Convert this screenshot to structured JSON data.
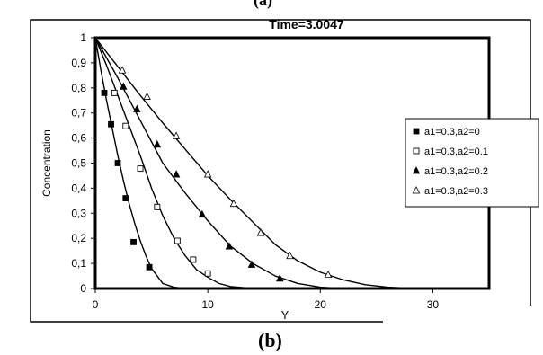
{
  "panel_label_top": "(a)",
  "panel_label": "(b)",
  "chart_data": {
    "type": "line",
    "title": "Time=3.0047",
    "xlabel": "Y",
    "ylabel": "Concentration",
    "xlim": [
      0,
      35
    ],
    "ylim": [
      0,
      1
    ],
    "xticks": [
      "0",
      "10",
      "20",
      "30"
    ],
    "xtick_values": [
      0,
      10,
      20,
      30
    ],
    "yticks": [
      "0",
      "0,1",
      "0,2",
      "0,3",
      "0,4",
      "0,5",
      "0,6",
      "0,7",
      "0,8",
      "0,9",
      "1"
    ],
    "ytick_values": [
      0,
      0.1,
      0.2,
      0.3,
      0.4,
      0.5,
      0.6,
      0.7,
      0.8,
      0.9,
      1
    ],
    "grid": false,
    "legend_position": "right",
    "series": [
      {
        "name": "a1=0.3,a2=0",
        "marker": "filled-square",
        "curve": [
          [
            0,
            1
          ],
          [
            0.5,
            0.87
          ],
          [
            1,
            0.75
          ],
          [
            1.5,
            0.64
          ],
          [
            2,
            0.53
          ],
          [
            2.5,
            0.43
          ],
          [
            3,
            0.34
          ],
          [
            3.5,
            0.26
          ],
          [
            4,
            0.19
          ],
          [
            4.5,
            0.13
          ],
          [
            5,
            0.08
          ],
          [
            5.5,
            0.05
          ],
          [
            6,
            0.02
          ],
          [
            7,
            0.005
          ],
          [
            8,
            0
          ]
        ],
        "points": [
          [
            0.8,
            0.78
          ],
          [
            1.4,
            0.655
          ],
          [
            2.0,
            0.5
          ],
          [
            2.7,
            0.36
          ],
          [
            3.4,
            0.185
          ],
          [
            4.8,
            0.085
          ]
        ]
      },
      {
        "name": "a1=0.3,a2=0.1",
        "marker": "open-square",
        "curve": [
          [
            0,
            1
          ],
          [
            1,
            0.89
          ],
          [
            2,
            0.77
          ],
          [
            3,
            0.65
          ],
          [
            4,
            0.53
          ],
          [
            5,
            0.4
          ],
          [
            6,
            0.29
          ],
          [
            7,
            0.2
          ],
          [
            8,
            0.13
          ],
          [
            9,
            0.075
          ],
          [
            10,
            0.045
          ],
          [
            11,
            0.02
          ],
          [
            12,
            0.008
          ],
          [
            14,
            0
          ]
        ],
        "points": [
          [
            1.7,
            0.78
          ],
          [
            2.7,
            0.648
          ],
          [
            4.0,
            0.478
          ],
          [
            5.5,
            0.325
          ],
          [
            7.3,
            0.19
          ],
          [
            8.7,
            0.115
          ],
          [
            10.0,
            0.06
          ]
        ]
      },
      {
        "name": "a1=0.3,a2=0.2",
        "marker": "filled-triangle",
        "curve": [
          [
            0,
            1
          ],
          [
            2,
            0.84
          ],
          [
            4,
            0.67
          ],
          [
            6,
            0.5
          ],
          [
            8,
            0.38
          ],
          [
            10,
            0.27
          ],
          [
            12,
            0.17
          ],
          [
            14,
            0.1
          ],
          [
            16,
            0.05
          ],
          [
            18,
            0.02
          ],
          [
            20,
            0.005
          ],
          [
            22,
            0
          ]
        ],
        "points": [
          [
            2.5,
            0.805
          ],
          [
            3.7,
            0.715
          ],
          [
            5.5,
            0.574
          ],
          [
            7.2,
            0.455
          ],
          [
            9.5,
            0.295
          ],
          [
            11.9,
            0.168
          ],
          [
            13.9,
            0.095
          ],
          [
            16.4,
            0.04
          ]
        ]
      },
      {
        "name": "a1=0.3,a2=0.3",
        "marker": "open-triangle",
        "curve": [
          [
            0,
            1
          ],
          [
            2,
            0.885
          ],
          [
            4,
            0.77
          ],
          [
            6,
            0.66
          ],
          [
            8,
            0.555
          ],
          [
            10,
            0.45
          ],
          [
            12,
            0.355
          ],
          [
            14,
            0.265
          ],
          [
            16,
            0.175
          ],
          [
            18,
            0.11
          ],
          [
            20,
            0.065
          ],
          [
            22,
            0.035
          ],
          [
            24,
            0.015
          ],
          [
            26,
            0.005
          ],
          [
            28,
            0.001
          ],
          [
            30,
            0
          ]
        ],
        "points": [
          [
            2.4,
            0.87
          ],
          [
            4.6,
            0.765
          ],
          [
            7.2,
            0.608
          ],
          [
            10.0,
            0.455
          ],
          [
            12.3,
            0.338
          ],
          [
            14.7,
            0.222
          ],
          [
            17.3,
            0.13
          ],
          [
            20.7,
            0.055
          ]
        ]
      }
    ]
  }
}
